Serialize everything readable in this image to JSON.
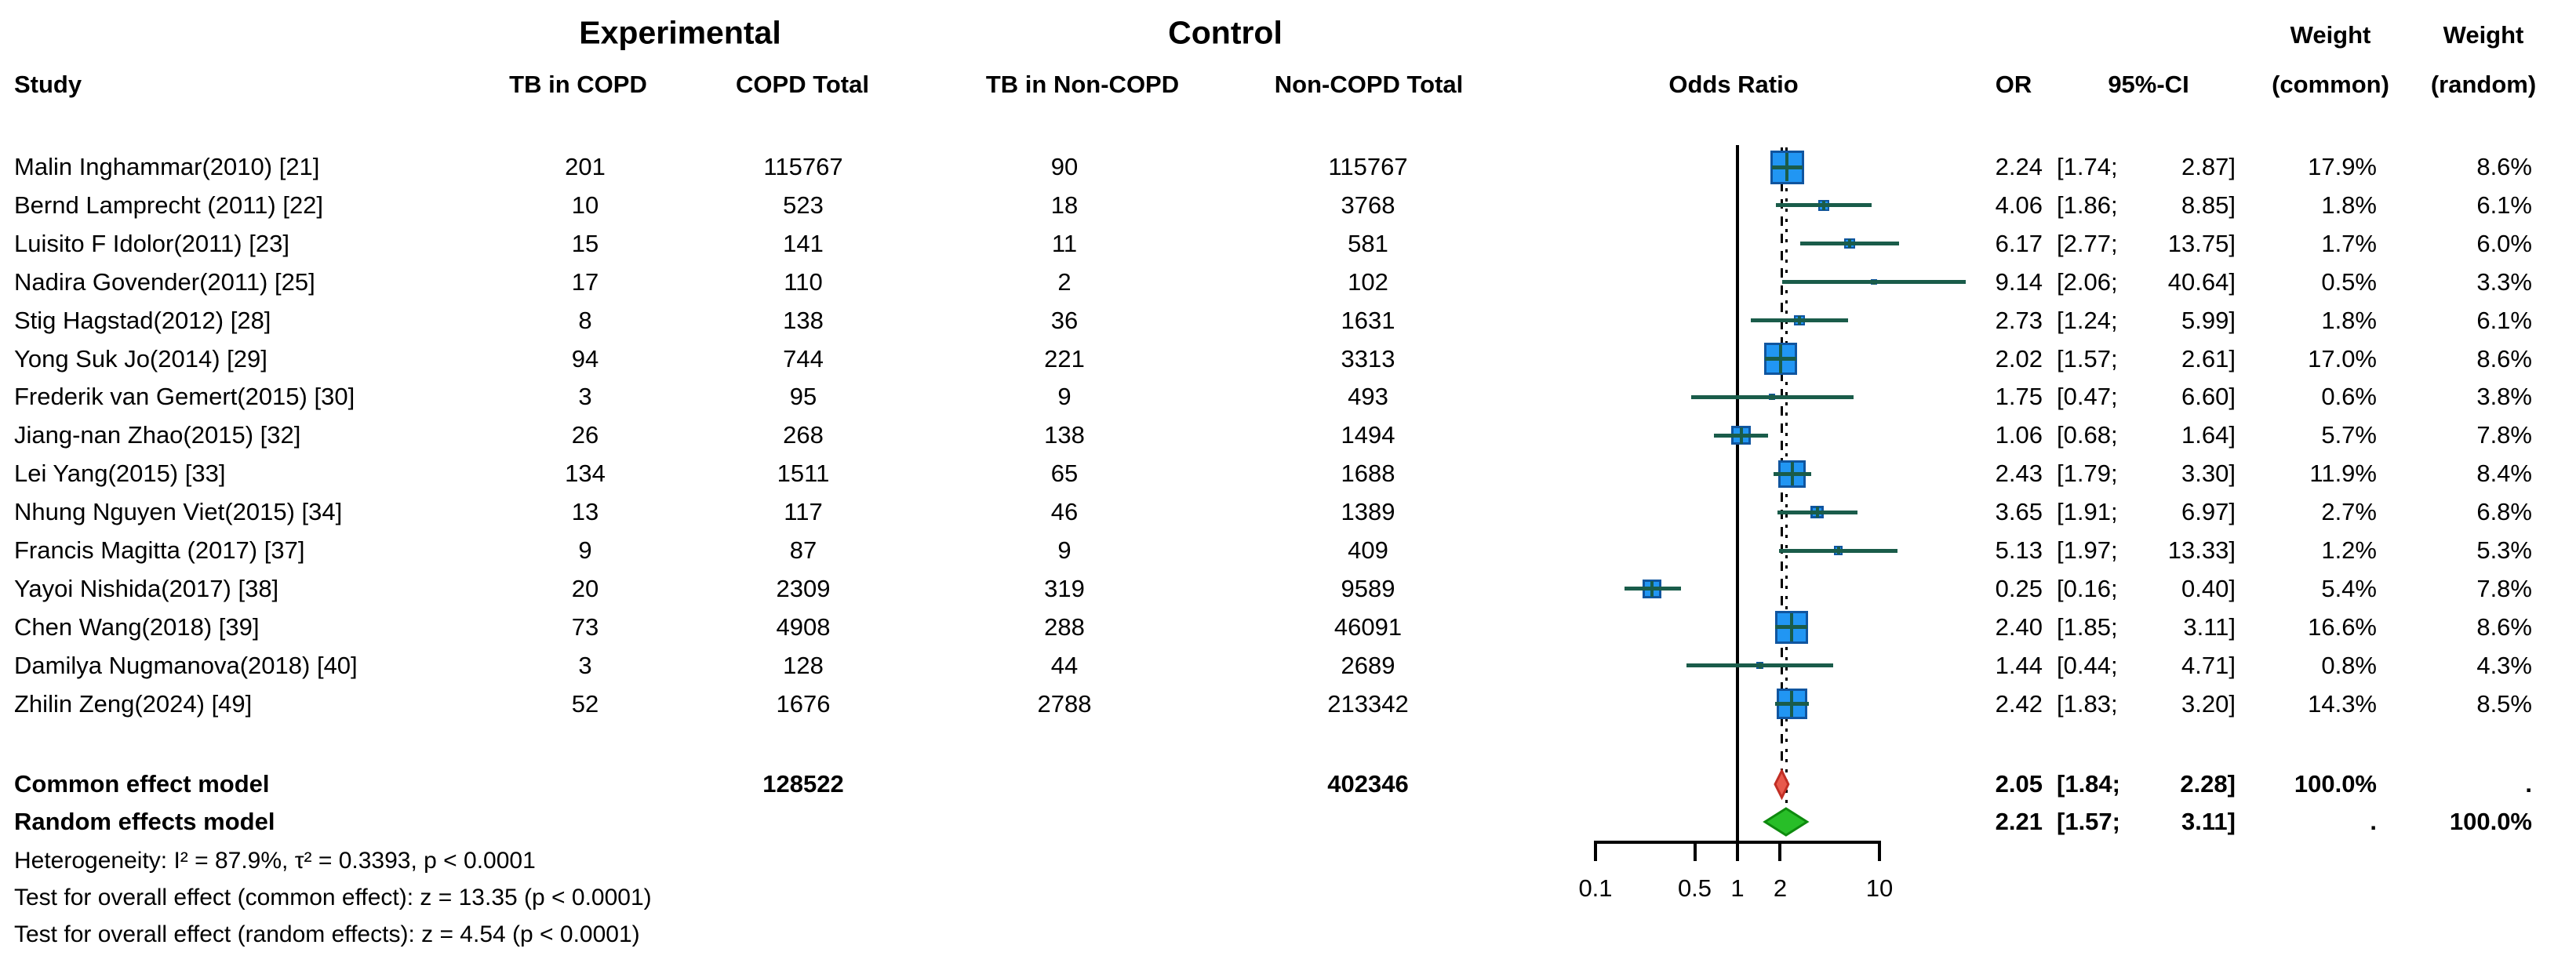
{
  "groups": {
    "experimental": "Experimental",
    "control": "Control"
  },
  "columns": {
    "study": "Study",
    "tb_copd": "TB in COPD",
    "copd_total": "COPD Total",
    "tb_non_copd": "TB in Non-COPD",
    "non_copd_total": "Non-COPD Total",
    "odds_ratio_plot": "Odds Ratio",
    "or": "OR",
    "ci": "95%-CI",
    "weight_line": "Weight",
    "weight_common_sub": "(common)",
    "weight_random_sub": "(random)"
  },
  "chart_data": {
    "type": "forest",
    "x_scale": "log",
    "axis_ticks": [
      "0.1",
      "0.5",
      "1",
      "2",
      "10"
    ],
    "axis_tick_values": [
      0.1,
      0.5,
      1,
      2,
      10
    ],
    "null_line": 1,
    "common_effect_or": 2.05,
    "random_effect_or": 2.21,
    "studies": [
      {
        "name": "Malin Inghammar(2010) [21]",
        "tb_copd": "201",
        "copd_total": "115767",
        "tb_non_copd": "90",
        "non_copd_total": "115767",
        "or": "2.24",
        "ci_low": "1.74",
        "ci_high": "2.87",
        "weight_common": "17.9%",
        "weight_random": "8.6%"
      },
      {
        "name": "Bernd Lamprecht (2011) [22]",
        "tb_copd": "10",
        "copd_total": "523",
        "tb_non_copd": "18",
        "non_copd_total": "3768",
        "or": "4.06",
        "ci_low": "1.86",
        "ci_high": "8.85",
        "weight_common": "1.8%",
        "weight_random": "6.1%"
      },
      {
        "name": "Luisito F Idolor(2011) [23]",
        "tb_copd": "15",
        "copd_total": "141",
        "tb_non_copd": "11",
        "non_copd_total": "581",
        "or": "6.17",
        "ci_low": "2.77",
        "ci_high": "13.75",
        "weight_common": "1.7%",
        "weight_random": "6.0%"
      },
      {
        "name": "Nadira Govender(2011) [25]",
        "tb_copd": "17",
        "copd_total": "110",
        "tb_non_copd": "2",
        "non_copd_total": "102",
        "or": "9.14",
        "ci_low": "2.06",
        "ci_high": "40.64",
        "weight_common": "0.5%",
        "weight_random": "3.3%"
      },
      {
        "name": "Stig Hagstad(2012) [28]",
        "tb_copd": "8",
        "copd_total": "138",
        "tb_non_copd": "36",
        "non_copd_total": "1631",
        "or": "2.73",
        "ci_low": "1.24",
        "ci_high": "5.99",
        "weight_common": "1.8%",
        "weight_random": "6.1%"
      },
      {
        "name": "Yong Suk Jo(2014) [29]",
        "tb_copd": "94",
        "copd_total": "744",
        "tb_non_copd": "221",
        "non_copd_total": "3313",
        "or": "2.02",
        "ci_low": "1.57",
        "ci_high": "2.61",
        "weight_common": "17.0%",
        "weight_random": "8.6%"
      },
      {
        "name": "Frederik van Gemert(2015) [30]",
        "tb_copd": "3",
        "copd_total": "95",
        "tb_non_copd": "9",
        "non_copd_total": "493",
        "or": "1.75",
        "ci_low": "0.47",
        "ci_high": "6.60",
        "weight_common": "0.6%",
        "weight_random": "3.8%"
      },
      {
        "name": "Jiang-nan Zhao(2015) [32]",
        "tb_copd": "26",
        "copd_total": "268",
        "tb_non_copd": "138",
        "non_copd_total": "1494",
        "or": "1.06",
        "ci_low": "0.68",
        "ci_high": "1.64",
        "weight_common": "5.7%",
        "weight_random": "7.8%"
      },
      {
        "name": "Lei Yang(2015) [33]",
        "tb_copd": "134",
        "copd_total": "1511",
        "tb_non_copd": "65",
        "non_copd_total": "1688",
        "or": "2.43",
        "ci_low": "1.79",
        "ci_high": "3.30",
        "weight_common": "11.9%",
        "weight_random": "8.4%"
      },
      {
        "name": "Nhung Nguyen Viet(2015) [34]",
        "tb_copd": "13",
        "copd_total": "117",
        "tb_non_copd": "46",
        "non_copd_total": "1389",
        "or": "3.65",
        "ci_low": "1.91",
        "ci_high": "6.97",
        "weight_common": "2.7%",
        "weight_random": "6.8%"
      },
      {
        "name": "Francis Magitta (2017) [37]",
        "tb_copd": "9",
        "copd_total": "87",
        "tb_non_copd": "9",
        "non_copd_total": "409",
        "or": "5.13",
        "ci_low": "1.97",
        "ci_high": "13.33",
        "weight_common": "1.2%",
        "weight_random": "5.3%"
      },
      {
        "name": "Yayoi Nishida(2017) [38]",
        "tb_copd": "20",
        "copd_total": "2309",
        "tb_non_copd": "319",
        "non_copd_total": "9589",
        "or": "0.25",
        "ci_low": "0.16",
        "ci_high": "0.40",
        "weight_common": "5.4%",
        "weight_random": "7.8%"
      },
      {
        "name": "Chen Wang(2018) [39]",
        "tb_copd": "73",
        "copd_total": "4908",
        "tb_non_copd": "288",
        "non_copd_total": "46091",
        "or": "2.40",
        "ci_low": "1.85",
        "ci_high": "3.11",
        "weight_common": "16.6%",
        "weight_random": "8.6%"
      },
      {
        "name": "Damilya Nugmanova(2018) [40]",
        "tb_copd": "3",
        "copd_total": "128",
        "tb_non_copd": "44",
        "non_copd_total": "2689",
        "or": "1.44",
        "ci_low": "0.44",
        "ci_high": "4.71",
        "weight_common": "0.8%",
        "weight_random": "4.3%"
      },
      {
        "name": "Zhilin Zeng(2024) [49]",
        "tb_copd": "52",
        "copd_total": "1676",
        "tb_non_copd": "2788",
        "non_copd_total": "213342",
        "or": "2.42",
        "ci_low": "1.83",
        "ci_high": "3.20",
        "weight_common": "14.3%",
        "weight_random": "8.5%"
      }
    ],
    "summary": [
      {
        "label": "Common effect model",
        "copd_total": "128522",
        "non_copd_total": "402346",
        "or": "2.05",
        "ci_low": "1.84",
        "ci_high": "2.28",
        "weight_common": "100.0%",
        "weight_random": ".",
        "diamond": "common"
      },
      {
        "label": "Random effects model",
        "copd_total": "",
        "non_copd_total": "",
        "or": "2.21",
        "ci_low": "1.57",
        "ci_high": "3.11",
        "weight_common": ".",
        "weight_random": "100.0%",
        "diamond": "random"
      }
    ]
  },
  "footnotes": [
    "Heterogeneity: I² = 87.9%, τ² = 0.3393, p < 0.0001",
    "Test for overall effect (common effect): z = 13.35 (p < 0.0001)",
    "Test for overall effect (random effects): z = 4.54 (p < 0.0001)"
  ],
  "colors": {
    "square_fill": "#2196F3",
    "square_border": "#10559F",
    "ci_line": "#1A5C4A",
    "common_diamond_fill": "#E8594C",
    "common_diamond_border": "#C12E24",
    "random_diamond_fill": "#28BE28",
    "random_diamond_border": "#0E8A0E",
    "line_color": "#000000"
  }
}
